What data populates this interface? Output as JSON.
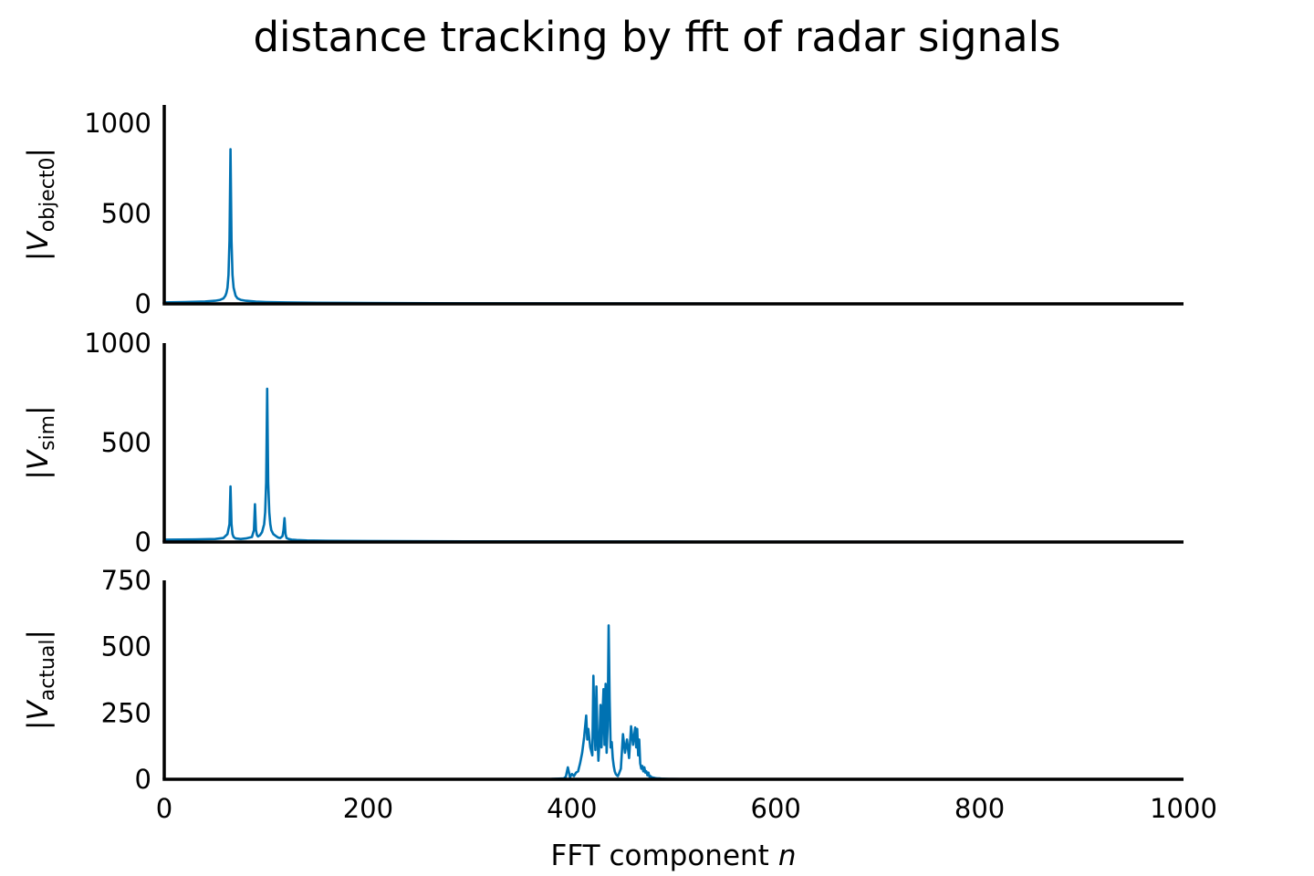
{
  "chart_data": {
    "type": "line",
    "title": "distance tracking by fft of radar signals",
    "xlabel": "FFT component",
    "xlabel_var": "n",
    "xlim": [
      0,
      1000
    ],
    "xticks": [
      "0",
      "200",
      "400",
      "600",
      "800",
      "1000"
    ],
    "line_color": "#0072b2",
    "panels": [
      {
        "ylabel_var": "V",
        "ylabel_sub": "object0",
        "ylim": [
          0,
          1100
        ],
        "yticks": [
          "0",
          "500",
          "1000"
        ],
        "x": [
          0,
          20,
          40,
          50,
          55,
          58,
          60,
          61,
          62,
          63,
          64,
          65,
          66,
          67,
          68,
          70,
          72,
          75,
          80,
          90,
          100,
          120,
          150,
          200,
          300,
          400,
          600,
          800,
          1000
        ],
        "values": [
          8,
          10,
          13,
          17,
          22,
          30,
          45,
          60,
          90,
          160,
          350,
          855,
          350,
          160,
          90,
          45,
          30,
          22,
          17,
          12,
          10,
          8,
          6,
          5,
          3,
          2,
          1,
          1,
          1
        ]
      },
      {
        "ylabel_var": "V",
        "ylabel_sub": "sim",
        "ylim": [
          0,
          1000
        ],
        "yticks": [
          "0",
          "500",
          "1000"
        ],
        "x": [
          0,
          30,
          50,
          58,
          62,
          64,
          65,
          66,
          67,
          68,
          70,
          75,
          80,
          86,
          88,
          89,
          90,
          91,
          92,
          94,
          96,
          98,
          99,
          100,
          101,
          102,
          103,
          104,
          105,
          107,
          110,
          112,
          114,
          116,
          117,
          118,
          119,
          120,
          122,
          125,
          130,
          140,
          160,
          200,
          300,
          500,
          800,
          1000
        ],
        "values": [
          12,
          13,
          15,
          20,
          40,
          90,
          280,
          90,
          40,
          25,
          18,
          15,
          18,
          25,
          60,
          190,
          60,
          35,
          28,
          35,
          50,
          90,
          150,
          300,
          770,
          300,
          150,
          90,
          60,
          40,
          28,
          22,
          20,
          30,
          60,
          120,
          40,
          20,
          15,
          12,
          10,
          8,
          6,
          5,
          3,
          2,
          1,
          1
        ]
      },
      {
        "ylabel_var": "V",
        "ylabel_sub": "actual",
        "ylim": [
          0,
          750
        ],
        "yticks": [
          "0",
          "250",
          "500",
          "750"
        ],
        "x": [
          0,
          100,
          200,
          300,
          380,
          392,
          394,
          396,
          398,
          400,
          402,
          404,
          406,
          408,
          410,
          412,
          414,
          415,
          416,
          418,
          420,
          421,
          422,
          423,
          424,
          425,
          426,
          427,
          428,
          429,
          430,
          431,
          432,
          433,
          434,
          435,
          436,
          437,
          438,
          439,
          440,
          441,
          442,
          443,
          444,
          445,
          446,
          448,
          450,
          452,
          454,
          456,
          458,
          460,
          462,
          463,
          464,
          465,
          466,
          467,
          468,
          469,
          470,
          471,
          472,
          473,
          474,
          475,
          476,
          477,
          478,
          480,
          482,
          484,
          486,
          488,
          490,
          495,
          500,
          520,
          550,
          580,
          620,
          700,
          800,
          1000
        ],
        "values": [
          0,
          0,
          0,
          0,
          1,
          3,
          10,
          45,
          8,
          20,
          12,
          25,
          30,
          60,
          100,
          160,
          240,
          150,
          190,
          120,
          90,
          390,
          200,
          110,
          350,
          170,
          70,
          150,
          280,
          120,
          240,
          340,
          130,
          360,
          100,
          200,
          580,
          300,
          120,
          140,
          80,
          50,
          30,
          20,
          15,
          12,
          20,
          40,
          170,
          100,
          150,
          80,
          200,
          130,
          195,
          120,
          190,
          90,
          150,
          60,
          40,
          50,
          30,
          45,
          25,
          30,
          15,
          25,
          10,
          12,
          8,
          6,
          4,
          3,
          3,
          2,
          2,
          1,
          1,
          0,
          0,
          0,
          0,
          0,
          0,
          0
        ]
      }
    ]
  }
}
